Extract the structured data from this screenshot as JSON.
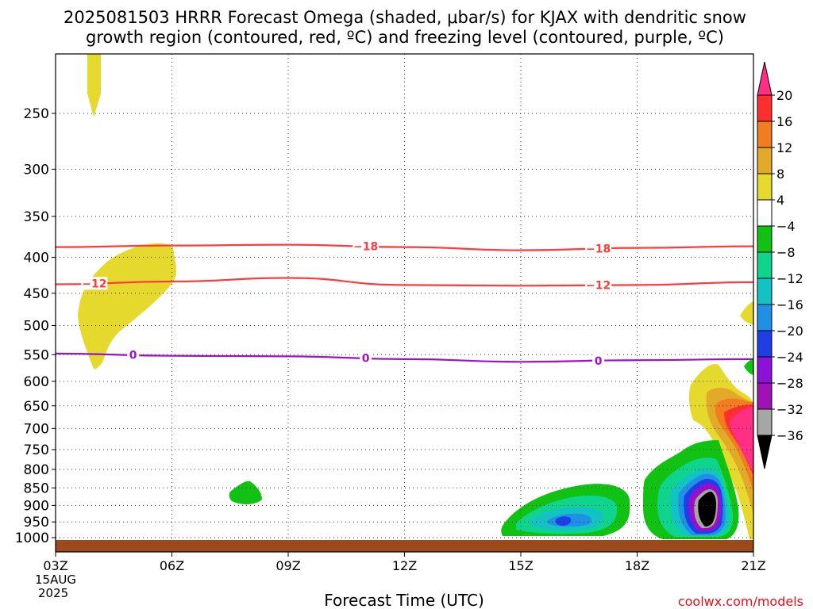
{
  "chart_data": {
    "type": "heatmap",
    "title_line1": "2025081503 HRRR Forecast Omega (shaded, μbar/s) for KJAX with dendritic snow",
    "title_line2": "growth region (contoured, red, ºC) and freezing level (contoured, purple, ºC)",
    "xlabel": "Forecast Time (UTC)",
    "ylabel": "",
    "credit": "coolwx.com/models",
    "x_ticks": [
      "03Z",
      "06Z",
      "09Z",
      "12Z",
      "15Z",
      "18Z",
      "21Z"
    ],
    "x_start_date_lines": [
      "15AUG",
      "2025"
    ],
    "x_range": [
      "03Z",
      "21Z"
    ],
    "y_ticks": [
      250,
      300,
      350,
      400,
      450,
      500,
      550,
      600,
      650,
      700,
      750,
      800,
      850,
      900,
      950,
      1000
    ],
    "y_unit": "hPa",
    "y_scale": "log",
    "y_reversed": true,
    "y_range": [
      200,
      1030
    ],
    "grid": true,
    "colorbar": {
      "labels": [
        "20",
        "16",
        "12",
        "8",
        "4",
        "−4",
        "−8",
        "−12",
        "−16",
        "−20",
        "−24",
        "−28",
        "−32",
        "−36"
      ],
      "colors": [
        "#ff2f84",
        "#ff2f2f",
        "#f27d20",
        "#e3a928",
        "#e6d92e",
        "#ffffff",
        "#12c212",
        "#0fd48e",
        "#13c3c3",
        "#1e90e6",
        "#1f3fe6",
        "#8c12d8",
        "#a012b6",
        "#a6a6a6",
        "#000000"
      ]
    },
    "contours": [
      {
        "name": "-18",
        "color": "#ff3b3b",
        "level": -18,
        "x": [
          "03Z",
          "06Z",
          "09Z",
          "12Z",
          "15Z",
          "18Z",
          "21Z"
        ],
        "y": [
          387,
          385,
          384,
          387,
          391,
          388,
          386
        ],
        "labels": [
          {
            "text": "−18",
            "x": "11Z"
          },
          {
            "text": "−18",
            "x": "17Z"
          }
        ]
      },
      {
        "name": "-12",
        "color": "#ff3b3b",
        "level": -12,
        "x": [
          "03Z",
          "06Z",
          "09Z",
          "12Z",
          "15Z",
          "18Z",
          "21Z"
        ],
        "y": [
          437,
          433,
          428,
          438,
          439,
          438,
          434
        ],
        "labels": [
          {
            "text": "−12",
            "x": "04Z"
          },
          {
            "text": "−12",
            "x": "17Z"
          }
        ]
      },
      {
        "name": "0",
        "color": "#9b12c8",
        "level": 0,
        "x": [
          "03Z",
          "06Z",
          "09Z",
          "12Z",
          "15Z",
          "18Z",
          "21Z"
        ],
        "y": [
          548,
          552,
          553,
          558,
          563,
          560,
          558
        ],
        "labels": [
          {
            "text": "0",
            "x": "05Z"
          },
          {
            "text": "0",
            "x": "11Z"
          },
          {
            "text": "0",
            "x": "17Z"
          }
        ]
      }
    ],
    "shaded_regions": [
      {
        "name": "rising-omega-top-left",
        "value_range": "4 to 8",
        "color": "#e6d92e",
        "x_hours": [
          3.7,
          4.1
        ],
        "y_range": [
          200,
          255
        ]
      },
      {
        "name": "rising-omega-mid-left",
        "value_range": "4 to 8",
        "color": "#e6d92e",
        "x_hours": [
          3.3,
          6.2
        ],
        "y_range": [
          380,
          575
        ]
      },
      {
        "name": "sinking-omega-09z",
        "value_range": "-4 to -8",
        "color": "#12c212",
        "x_hours": [
          7.5,
          8.3
        ],
        "y_range": [
          835,
          905
        ]
      },
      {
        "name": "sinking-omega-16z",
        "value_range": "-4 to -22",
        "min_value": -21,
        "x_hours": [
          14.6,
          18.0
        ],
        "y_range": [
          855,
          1000
        ]
      },
      {
        "name": "sinking-omega-20z",
        "value_range": "-4 to below -36",
        "min_value": -40,
        "x_hours": [
          18.1,
          20.8
        ],
        "y_range": [
          730,
          995
        ]
      },
      {
        "name": "rising-omega-20z",
        "value_range": "4 to above 20",
        "max_value": 22,
        "x_hours": [
          19.5,
          21.0
        ],
        "y_range": [
          590,
          990
        ]
      },
      {
        "name": "rising-omega-21z-mid",
        "value_range": "4 to 8",
        "color": "#e6d92e",
        "x_hours": [
          20.75,
          21.0
        ],
        "y_range": [
          480,
          510
        ]
      },
      {
        "name": "sinking-omega-21z-small",
        "value_range": "-4 to -8",
        "color": "#12c212",
        "x_hours": [
          20.8,
          21.0
        ],
        "y_range": [
          570,
          600
        ]
      }
    ],
    "ground": {
      "color": "#9c4a1c",
      "y_range": [
        1010,
        1030
      ]
    }
  }
}
